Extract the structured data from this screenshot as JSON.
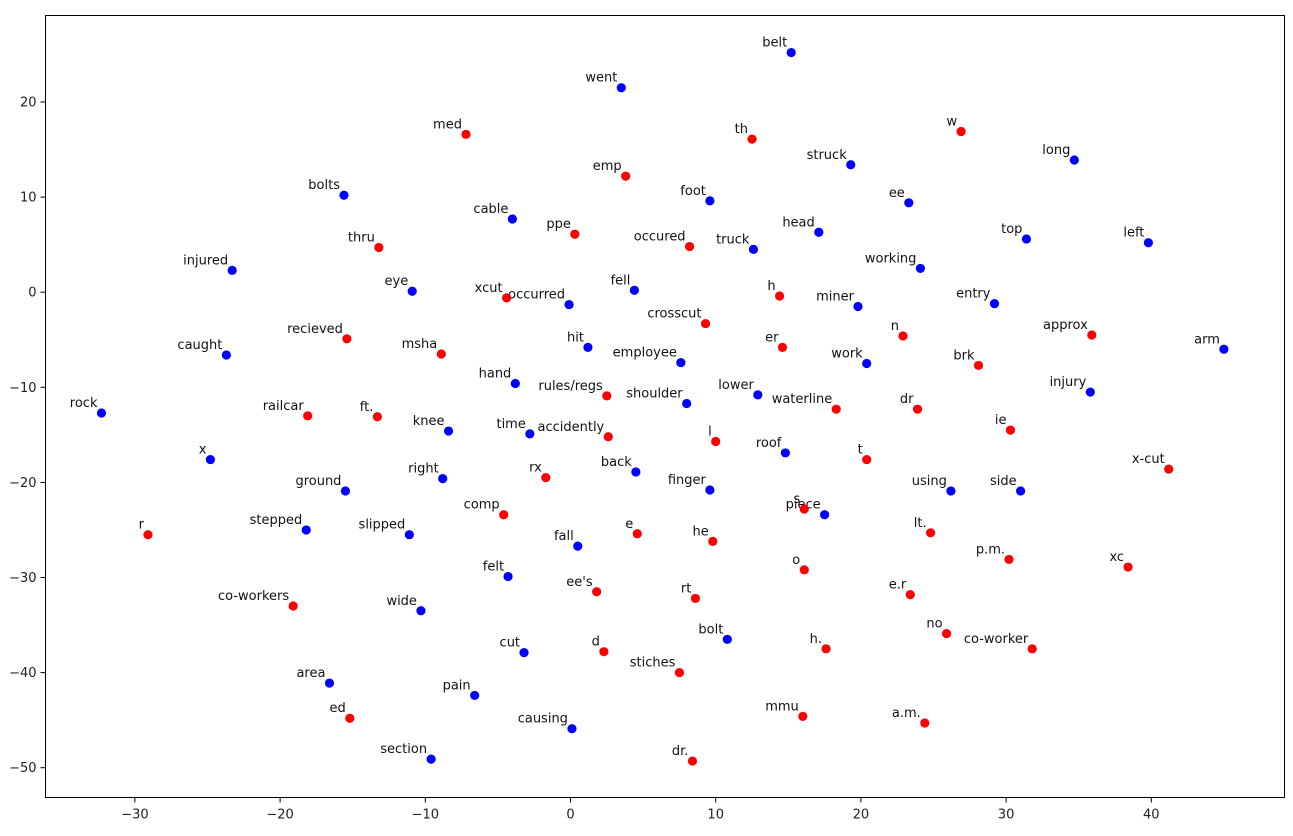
{
  "chart_data": {
    "type": "scatter",
    "title": "",
    "xlabel": "",
    "ylabel": "",
    "xlim": [
      -36,
      49
    ],
    "ylim": [
      -53,
      28
    ],
    "grid": false,
    "legend": "none",
    "xticks": [
      -30,
      -20,
      -10,
      0,
      10,
      20,
      30,
      40
    ],
    "yticks": [
      20,
      10,
      0,
      -10,
      -20,
      -30,
      -40,
      -50
    ],
    "xtick_labels": [
      "−30",
      "−20",
      "−10",
      "0",
      "10",
      "20",
      "30",
      "40"
    ],
    "ytick_labels": [
      "20",
      "10",
      "0",
      "−10",
      "−20",
      "−30",
      "−40",
      "−50"
    ],
    "series": [
      {
        "color": "#0000ff",
        "points": [
          {
            "label": "belt",
            "x": 15.2,
            "y": 25.2
          },
          {
            "label": "went",
            "x": 3.5,
            "y": 21.5
          },
          {
            "label": "struck",
            "x": 19.3,
            "y": 13.4
          },
          {
            "label": "long",
            "x": 34.7,
            "y": 13.9
          },
          {
            "label": "bolts",
            "x": -15.6,
            "y": 10.2
          },
          {
            "label": "foot",
            "x": 9.6,
            "y": 9.6
          },
          {
            "label": "ee",
            "x": 23.3,
            "y": 9.4
          },
          {
            "label": "cable",
            "x": -4.0,
            "y": 7.7
          },
          {
            "label": "head",
            "x": 17.1,
            "y": 6.3
          },
          {
            "label": "top",
            "x": 31.4,
            "y": 5.6
          },
          {
            "label": "left",
            "x": 39.8,
            "y": 5.2
          },
          {
            "label": "truck",
            "x": 12.6,
            "y": 4.5
          },
          {
            "label": "injured",
            "x": -23.3,
            "y": 2.3
          },
          {
            "label": "working",
            "x": 24.1,
            "y": 2.5
          },
          {
            "label": "eye",
            "x": -10.9,
            "y": 0.1
          },
          {
            "label": "fell",
            "x": 4.4,
            "y": 0.2
          },
          {
            "label": "occurred",
            "x": -0.1,
            "y": -1.3
          },
          {
            "label": "entry",
            "x": 29.2,
            "y": -1.2
          },
          {
            "label": "miner",
            "x": 19.8,
            "y": -1.5
          },
          {
            "label": "hit",
            "x": 1.2,
            "y": -5.8
          },
          {
            "label": "arm",
            "x": 45.0,
            "y": -6.0
          },
          {
            "label": "caught",
            "x": -23.7,
            "y": -6.6
          },
          {
            "label": "employee",
            "x": 7.6,
            "y": -7.4
          },
          {
            "label": "work",
            "x": 20.4,
            "y": -7.5
          },
          {
            "label": "hand",
            "x": -3.8,
            "y": -9.6
          },
          {
            "label": "injury",
            "x": 35.8,
            "y": -10.5
          },
          {
            "label": "lower",
            "x": 12.9,
            "y": -10.8
          },
          {
            "label": "shoulder",
            "x": 8.0,
            "y": -11.7
          },
          {
            "label": "rock",
            "x": -32.3,
            "y": -12.7
          },
          {
            "label": "knee",
            "x": -8.4,
            "y": -14.6
          },
          {
            "label": "time",
            "x": -2.8,
            "y": -14.9
          },
          {
            "label": "roof",
            "x": 14.8,
            "y": -16.9
          },
          {
            "label": "x",
            "x": -24.8,
            "y": -17.6
          },
          {
            "label": "back",
            "x": 4.5,
            "y": -18.9
          },
          {
            "label": "right",
            "x": -8.8,
            "y": -19.6
          },
          {
            "label": "finger",
            "x": 9.6,
            "y": -20.8
          },
          {
            "label": "ground",
            "x": -15.5,
            "y": -20.9
          },
          {
            "label": "using",
            "x": 26.2,
            "y": -20.9
          },
          {
            "label": "side",
            "x": 31.0,
            "y": -20.9
          },
          {
            "label": "piece",
            "x": 17.5,
            "y": -23.4
          },
          {
            "label": "stepped",
            "x": -18.2,
            "y": -25.0
          },
          {
            "label": "slipped",
            "x": -11.1,
            "y": -25.5
          },
          {
            "label": "fall",
            "x": 0.5,
            "y": -26.7
          },
          {
            "label": "felt",
            "x": -4.3,
            "y": -29.9
          },
          {
            "label": "wide",
            "x": -10.3,
            "y": -33.5
          },
          {
            "label": "bolt",
            "x": 10.8,
            "y": -36.5
          },
          {
            "label": "cut",
            "x": -3.2,
            "y": -37.9
          },
          {
            "label": "area",
            "x": -16.6,
            "y": -41.1
          },
          {
            "label": "pain",
            "x": -6.6,
            "y": -42.4
          },
          {
            "label": "causing",
            "x": 0.1,
            "y": -45.9
          },
          {
            "label": "section",
            "x": -9.6,
            "y": -49.1
          }
        ]
      },
      {
        "color": "#ff0000",
        "points": [
          {
            "label": "w",
            "x": 26.9,
            "y": 16.9
          },
          {
            "label": "med",
            "x": -7.2,
            "y": 16.6
          },
          {
            "label": "th",
            "x": 12.5,
            "y": 16.1
          },
          {
            "label": "emp",
            "x": 3.8,
            "y": 12.2
          },
          {
            "label": "ppe",
            "x": 0.3,
            "y": 6.1
          },
          {
            "label": "occured",
            "x": 8.2,
            "y": 4.8
          },
          {
            "label": "thru",
            "x": -13.2,
            "y": 4.7
          },
          {
            "label": "xcut",
            "x": -4.4,
            "y": -0.6
          },
          {
            "label": "h",
            "x": 14.4,
            "y": -0.4
          },
          {
            "label": "crosscut",
            "x": 9.3,
            "y": -3.3
          },
          {
            "label": "n",
            "x": 22.9,
            "y": -4.6
          },
          {
            "label": "approx",
            "x": 35.9,
            "y": -4.5
          },
          {
            "label": "recieved",
            "x": -15.4,
            "y": -4.9
          },
          {
            "label": "er",
            "x": 14.6,
            "y": -5.8
          },
          {
            "label": "msha",
            "x": -8.9,
            "y": -6.5
          },
          {
            "label": "brk",
            "x": 28.1,
            "y": -7.7
          },
          {
            "label": "rules/regs",
            "x": 2.5,
            "y": -10.9
          },
          {
            "label": "waterline",
            "x": 18.3,
            "y": -12.3
          },
          {
            "label": "dr",
            "x": 23.9,
            "y": -12.3
          },
          {
            "label": "railcar",
            "x": -18.1,
            "y": -13.0
          },
          {
            "label": "ft.",
            "x": -13.3,
            "y": -13.1
          },
          {
            "label": "ie",
            "x": 30.3,
            "y": -14.5
          },
          {
            "label": "accidently",
            "x": 2.6,
            "y": -15.2
          },
          {
            "label": "l",
            "x": 10.0,
            "y": -15.7
          },
          {
            "label": "t",
            "x": 20.4,
            "y": -17.6
          },
          {
            "label": "x-cut",
            "x": 41.2,
            "y": -18.6
          },
          {
            "label": "rx",
            "x": -1.7,
            "y": -19.5
          },
          {
            "label": "s",
            "x": 16.1,
            "y": -22.8
          },
          {
            "label": "comp",
            "x": -4.6,
            "y": -23.4
          },
          {
            "label": "lt.",
            "x": 24.8,
            "y": -25.3
          },
          {
            "label": "r",
            "x": -29.1,
            "y": -25.5
          },
          {
            "label": "e",
            "x": 4.6,
            "y": -25.4
          },
          {
            "label": "he",
            "x": 9.8,
            "y": -26.2
          },
          {
            "label": "p.m.",
            "x": 30.2,
            "y": -28.1
          },
          {
            "label": "o",
            "x": 16.1,
            "y": -29.2
          },
          {
            "label": "xc",
            "x": 38.4,
            "y": -28.9
          },
          {
            "label": "ee's",
            "x": 1.8,
            "y": -31.5
          },
          {
            "label": "e.r",
            "x": 23.4,
            "y": -31.8
          },
          {
            "label": "rt",
            "x": 8.6,
            "y": -32.2
          },
          {
            "label": "co-workers",
            "x": -19.1,
            "y": -33.0
          },
          {
            "label": "no",
            "x": 25.9,
            "y": -35.9
          },
          {
            "label": "h.",
            "x": 17.6,
            "y": -37.5
          },
          {
            "label": "co-worker",
            "x": 31.8,
            "y": -37.5
          },
          {
            "label": "d",
            "x": 2.3,
            "y": -37.8
          },
          {
            "label": "stiches",
            "x": 7.5,
            "y": -40.0
          },
          {
            "label": "mmu",
            "x": 16.0,
            "y": -44.6
          },
          {
            "label": "ed",
            "x": -15.2,
            "y": -44.8
          },
          {
            "label": "a.m.",
            "x": 24.4,
            "y": -45.3
          },
          {
            "label": "dr.",
            "x": 8.4,
            "y": -49.3
          }
        ]
      }
    ]
  }
}
